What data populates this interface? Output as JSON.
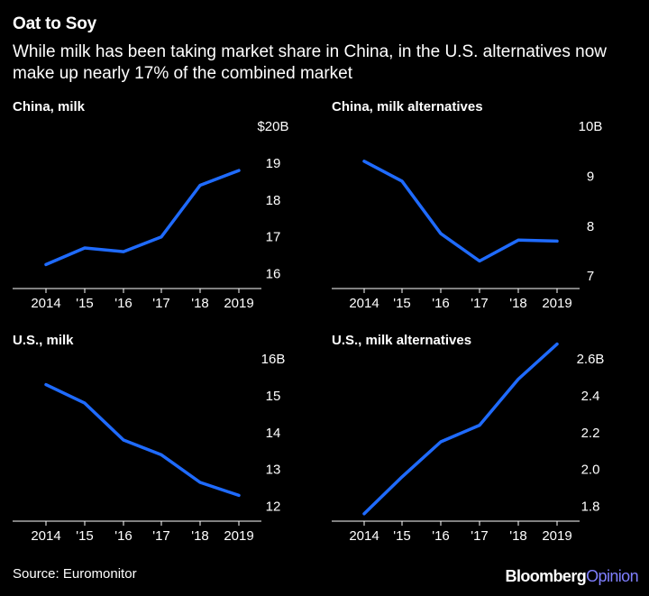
{
  "header": {
    "title": "Oat to Soy",
    "subtitle": "While milk has been taking market share in China, in the U.S. alternatives now make up nearly 17% of the combined market"
  },
  "footer": {
    "source": "Source: Euromonitor",
    "brand_main": "Bloomberg",
    "brand_accent": "Opinion"
  },
  "colors": {
    "line": "#1f6bff",
    "background": "#000000",
    "text": "#ffffff",
    "brand_accent": "#7f7fff"
  },
  "chart_data": [
    {
      "type": "line",
      "title": "China, milk",
      "x": [
        "2014",
        "'15",
        "'16",
        "'17",
        "'18",
        "2019"
      ],
      "values": [
        16.25,
        16.7,
        16.6,
        17.0,
        18.4,
        18.8
      ],
      "ylim": [
        15.6,
        20
      ],
      "yticks": [
        16,
        17,
        18,
        19,
        20
      ],
      "ytick_labels": [
        "16",
        "17",
        "18",
        "19",
        "$20B"
      ]
    },
    {
      "type": "line",
      "title": "China, milk alternatives",
      "x": [
        "2014",
        "'15",
        "'16",
        "'17",
        "'18",
        "2019"
      ],
      "values": [
        9.3,
        8.9,
        7.85,
        7.3,
        7.72,
        7.7
      ],
      "ylim": [
        6.75,
        10
      ],
      "yticks": [
        7,
        8,
        9,
        10
      ],
      "ytick_labels": [
        "7",
        "8",
        "9",
        "10B"
      ]
    },
    {
      "type": "line",
      "title": "U.S., milk",
      "x": [
        "2014",
        "'15",
        "'16",
        "'17",
        "'18",
        "2019"
      ],
      "values": [
        15.3,
        14.8,
        13.8,
        13.4,
        12.65,
        12.3
      ],
      "ylim": [
        11.6,
        16
      ],
      "yticks": [
        12,
        13,
        14,
        15,
        16
      ],
      "ytick_labels": [
        "12",
        "13",
        "14",
        "15",
        "16B"
      ]
    },
    {
      "type": "line",
      "title": "U.S., milk alternatives",
      "x": [
        "2014",
        "'15",
        "'16",
        "'17",
        "'18",
        "2019"
      ],
      "values": [
        1.76,
        1.96,
        2.15,
        2.24,
        2.49,
        2.68
      ],
      "ylim": [
        1.72,
        2.6
      ],
      "yticks": [
        1.8,
        2.0,
        2.2,
        2.4,
        2.6
      ],
      "ytick_labels": [
        "1.8",
        "2.0",
        "2.2",
        "2.4",
        "2.6B"
      ]
    }
  ]
}
